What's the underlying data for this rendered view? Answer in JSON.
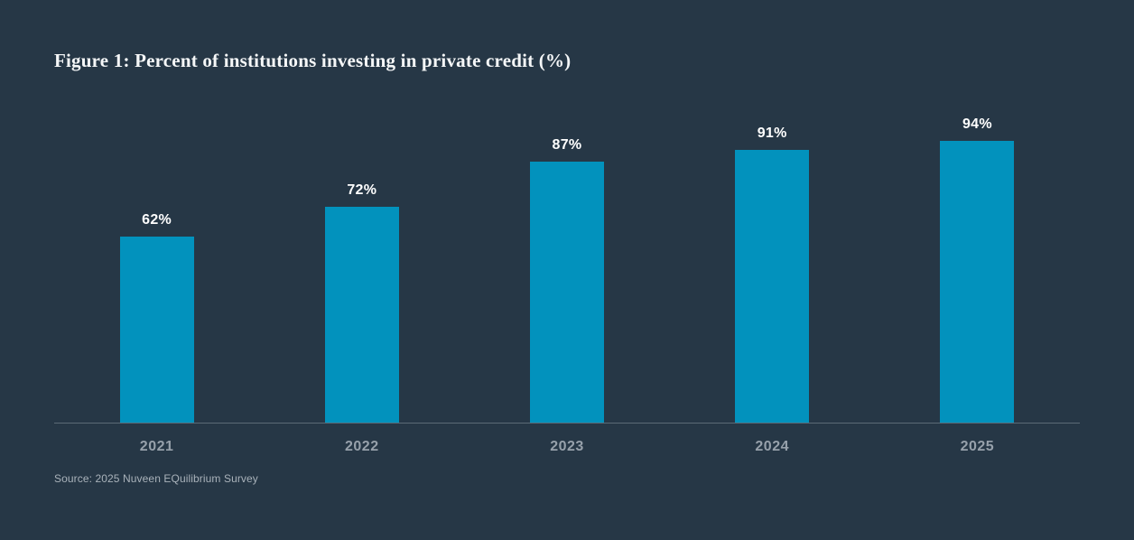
{
  "figure": {
    "title": "Figure 1: Percent of institutions investing in private credit (%)",
    "source": "Source: 2025 Nuveen EQuilibrium Survey"
  },
  "chart_data": {
    "type": "bar",
    "categories": [
      "2021",
      "2022",
      "2023",
      "2024",
      "2025"
    ],
    "values": [
      62,
      72,
      87,
      91,
      94
    ],
    "value_labels": [
      "62%",
      "72%",
      "87%",
      "91%",
      "94%"
    ],
    "title": "Figure 1: Percent of institutions investing in private credit (%)",
    "xlabel": "",
    "ylabel": "",
    "ylim": [
      0,
      100
    ],
    "grid": false,
    "legend": false,
    "y_axis_visible": false,
    "bar_color": "#0292BD",
    "background_color": "#263746",
    "axis_line_color": "#5c6b77",
    "value_label_color": "#ffffff",
    "category_label_color": "#97a1ab"
  }
}
